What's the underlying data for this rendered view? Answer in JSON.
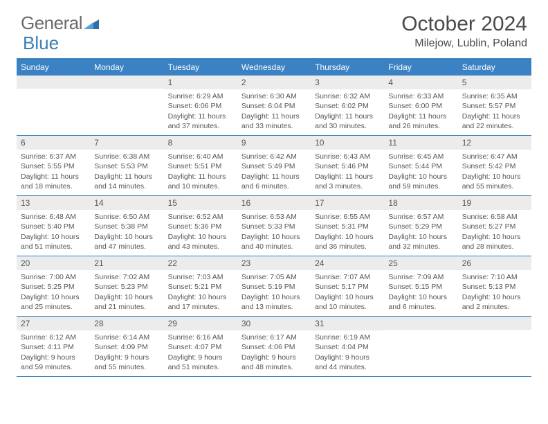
{
  "logo": {
    "general": "General",
    "blue": "Blue"
  },
  "title": "October 2024",
  "location": "Milejow, Lublin, Poland",
  "colors": {
    "header_bar": "#3a82c4",
    "accent": "#3a7fb8",
    "daynum_bg": "#ececec",
    "text": "#4a4a4a",
    "white": "#ffffff"
  },
  "weekdays": [
    "Sunday",
    "Monday",
    "Tuesday",
    "Wednesday",
    "Thursday",
    "Friday",
    "Saturday"
  ],
  "weeks": [
    [
      {
        "n": "",
        "lines": []
      },
      {
        "n": "",
        "lines": []
      },
      {
        "n": "1",
        "lines": [
          "Sunrise: 6:29 AM",
          "Sunset: 6:06 PM",
          "Daylight: 11 hours and 37 minutes."
        ]
      },
      {
        "n": "2",
        "lines": [
          "Sunrise: 6:30 AM",
          "Sunset: 6:04 PM",
          "Daylight: 11 hours and 33 minutes."
        ]
      },
      {
        "n": "3",
        "lines": [
          "Sunrise: 6:32 AM",
          "Sunset: 6:02 PM",
          "Daylight: 11 hours and 30 minutes."
        ]
      },
      {
        "n": "4",
        "lines": [
          "Sunrise: 6:33 AM",
          "Sunset: 6:00 PM",
          "Daylight: 11 hours and 26 minutes."
        ]
      },
      {
        "n": "5",
        "lines": [
          "Sunrise: 6:35 AM",
          "Sunset: 5:57 PM",
          "Daylight: 11 hours and 22 minutes."
        ]
      }
    ],
    [
      {
        "n": "6",
        "lines": [
          "Sunrise: 6:37 AM",
          "Sunset: 5:55 PM",
          "Daylight: 11 hours and 18 minutes."
        ]
      },
      {
        "n": "7",
        "lines": [
          "Sunrise: 6:38 AM",
          "Sunset: 5:53 PM",
          "Daylight: 11 hours and 14 minutes."
        ]
      },
      {
        "n": "8",
        "lines": [
          "Sunrise: 6:40 AM",
          "Sunset: 5:51 PM",
          "Daylight: 11 hours and 10 minutes."
        ]
      },
      {
        "n": "9",
        "lines": [
          "Sunrise: 6:42 AM",
          "Sunset: 5:49 PM",
          "Daylight: 11 hours and 6 minutes."
        ]
      },
      {
        "n": "10",
        "lines": [
          "Sunrise: 6:43 AM",
          "Sunset: 5:46 PM",
          "Daylight: 11 hours and 3 minutes."
        ]
      },
      {
        "n": "11",
        "lines": [
          "Sunrise: 6:45 AM",
          "Sunset: 5:44 PM",
          "Daylight: 10 hours and 59 minutes."
        ]
      },
      {
        "n": "12",
        "lines": [
          "Sunrise: 6:47 AM",
          "Sunset: 5:42 PM",
          "Daylight: 10 hours and 55 minutes."
        ]
      }
    ],
    [
      {
        "n": "13",
        "lines": [
          "Sunrise: 6:48 AM",
          "Sunset: 5:40 PM",
          "Daylight: 10 hours and 51 minutes."
        ]
      },
      {
        "n": "14",
        "lines": [
          "Sunrise: 6:50 AM",
          "Sunset: 5:38 PM",
          "Daylight: 10 hours and 47 minutes."
        ]
      },
      {
        "n": "15",
        "lines": [
          "Sunrise: 6:52 AM",
          "Sunset: 5:36 PM",
          "Daylight: 10 hours and 43 minutes."
        ]
      },
      {
        "n": "16",
        "lines": [
          "Sunrise: 6:53 AM",
          "Sunset: 5:33 PM",
          "Daylight: 10 hours and 40 minutes."
        ]
      },
      {
        "n": "17",
        "lines": [
          "Sunrise: 6:55 AM",
          "Sunset: 5:31 PM",
          "Daylight: 10 hours and 36 minutes."
        ]
      },
      {
        "n": "18",
        "lines": [
          "Sunrise: 6:57 AM",
          "Sunset: 5:29 PM",
          "Daylight: 10 hours and 32 minutes."
        ]
      },
      {
        "n": "19",
        "lines": [
          "Sunrise: 6:58 AM",
          "Sunset: 5:27 PM",
          "Daylight: 10 hours and 28 minutes."
        ]
      }
    ],
    [
      {
        "n": "20",
        "lines": [
          "Sunrise: 7:00 AM",
          "Sunset: 5:25 PM",
          "Daylight: 10 hours and 25 minutes."
        ]
      },
      {
        "n": "21",
        "lines": [
          "Sunrise: 7:02 AM",
          "Sunset: 5:23 PM",
          "Daylight: 10 hours and 21 minutes."
        ]
      },
      {
        "n": "22",
        "lines": [
          "Sunrise: 7:03 AM",
          "Sunset: 5:21 PM",
          "Daylight: 10 hours and 17 minutes."
        ]
      },
      {
        "n": "23",
        "lines": [
          "Sunrise: 7:05 AM",
          "Sunset: 5:19 PM",
          "Daylight: 10 hours and 13 minutes."
        ]
      },
      {
        "n": "24",
        "lines": [
          "Sunrise: 7:07 AM",
          "Sunset: 5:17 PM",
          "Daylight: 10 hours and 10 minutes."
        ]
      },
      {
        "n": "25",
        "lines": [
          "Sunrise: 7:09 AM",
          "Sunset: 5:15 PM",
          "Daylight: 10 hours and 6 minutes."
        ]
      },
      {
        "n": "26",
        "lines": [
          "Sunrise: 7:10 AM",
          "Sunset: 5:13 PM",
          "Daylight: 10 hours and 2 minutes."
        ]
      }
    ],
    [
      {
        "n": "27",
        "lines": [
          "Sunrise: 6:12 AM",
          "Sunset: 4:11 PM",
          "Daylight: 9 hours and 59 minutes."
        ]
      },
      {
        "n": "28",
        "lines": [
          "Sunrise: 6:14 AM",
          "Sunset: 4:09 PM",
          "Daylight: 9 hours and 55 minutes."
        ]
      },
      {
        "n": "29",
        "lines": [
          "Sunrise: 6:16 AM",
          "Sunset: 4:07 PM",
          "Daylight: 9 hours and 51 minutes."
        ]
      },
      {
        "n": "30",
        "lines": [
          "Sunrise: 6:17 AM",
          "Sunset: 4:06 PM",
          "Daylight: 9 hours and 48 minutes."
        ]
      },
      {
        "n": "31",
        "lines": [
          "Sunrise: 6:19 AM",
          "Sunset: 4:04 PM",
          "Daylight: 9 hours and 44 minutes."
        ]
      },
      {
        "n": "",
        "lines": []
      },
      {
        "n": "",
        "lines": []
      }
    ]
  ]
}
